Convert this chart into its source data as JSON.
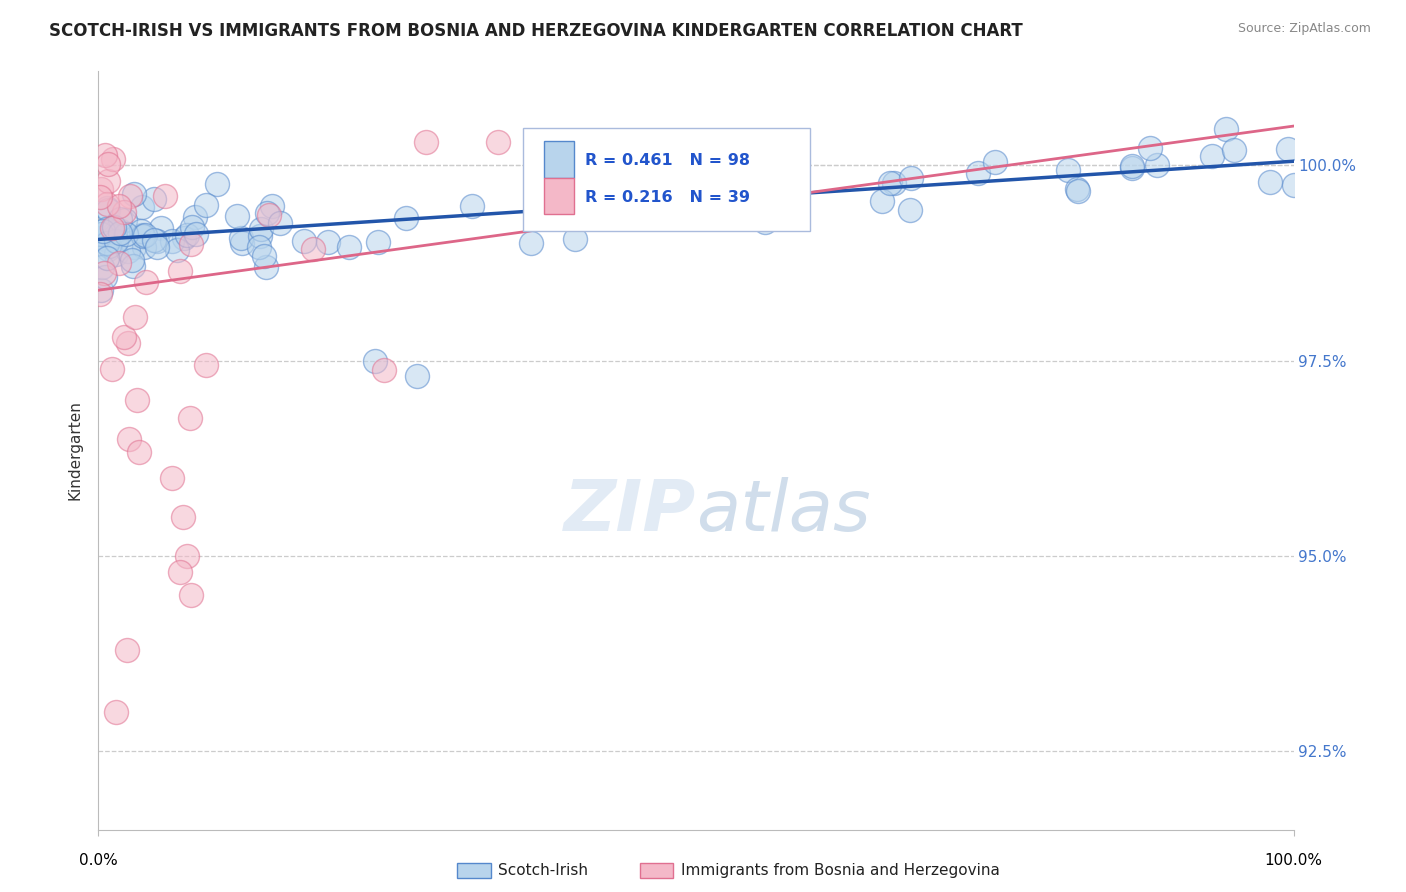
{
  "title": "SCOTCH-IRISH VS IMMIGRANTS FROM BOSNIA AND HERZEGOVINA KINDERGARTEN CORRELATION CHART",
  "source": "Source: ZipAtlas.com",
  "ylabel": "Kindergarten",
  "xlim": [
    0.0,
    100.0
  ],
  "ylim": [
    91.5,
    101.2
  ],
  "ytick_positions": [
    92.5,
    95.0,
    97.5,
    100.0
  ],
  "ytick_labels": [
    "92.5%",
    "95.0%",
    "97.5%",
    "100.0%"
  ],
  "blue_R": 0.461,
  "blue_N": 98,
  "pink_R": 0.216,
  "pink_N": 39,
  "blue_fill": "#b8d4ec",
  "pink_fill": "#f4b8c8",
  "blue_edge": "#5588cc",
  "pink_edge": "#e07090",
  "blue_line_color": "#2255aa",
  "pink_line_color": "#dd6688",
  "legend_blue_label": "Scotch-Irish",
  "legend_pink_label": "Immigrants from Bosnia and Herzegovina",
  "watermark": "ZIPatlas",
  "blue_line_x0": 0.0,
  "blue_line_y0": 99.05,
  "blue_line_x1": 100.0,
  "blue_line_y1": 100.05,
  "pink_line_x0": 0.0,
  "pink_line_y0": 98.4,
  "pink_line_x1": 100.0,
  "pink_line_y1": 100.5
}
